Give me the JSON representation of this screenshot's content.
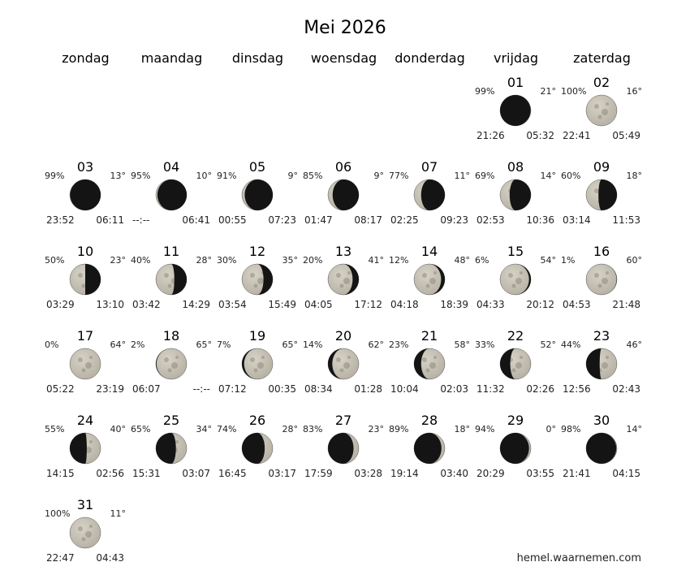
{
  "calendar": {
    "title": "Mei 2026",
    "weekdays": [
      "zondag",
      "maandag",
      "dinsdag",
      "woensdag",
      "donderdag",
      "vrijdag",
      "zaterdag"
    ],
    "first_weekday_index": 5,
    "days": [
      {
        "day": "01",
        "illumination": "99%",
        "altitude": "21°",
        "time_left": "21:26",
        "time_right": "05:32",
        "waxing": true
      },
      {
        "day": "02",
        "illumination": "100%",
        "altitude": "16°",
        "time_left": "22:41",
        "time_right": "05:49",
        "waxing": false
      },
      {
        "day": "03",
        "illumination": "99%",
        "altitude": "13°",
        "time_left": "23:52",
        "time_right": "06:11",
        "waxing": false
      },
      {
        "day": "04",
        "illumination": "95%",
        "altitude": "10°",
        "time_left": "--:--",
        "time_right": "06:41",
        "waxing": false
      },
      {
        "day": "05",
        "illumination": "91%",
        "altitude": "9°",
        "time_left": "00:55",
        "time_right": "07:23",
        "waxing": false
      },
      {
        "day": "06",
        "illumination": "85%",
        "altitude": "9°",
        "time_left": "01:47",
        "time_right": "08:17",
        "waxing": false
      },
      {
        "day": "07",
        "illumination": "77%",
        "altitude": "11°",
        "time_left": "02:25",
        "time_right": "09:23",
        "waxing": false
      },
      {
        "day": "08",
        "illumination": "69%",
        "altitude": "14°",
        "time_left": "02:53",
        "time_right": "10:36",
        "waxing": false
      },
      {
        "day": "09",
        "illumination": "60%",
        "altitude": "18°",
        "time_left": "03:14",
        "time_right": "11:53",
        "waxing": false
      },
      {
        "day": "10",
        "illumination": "50%",
        "altitude": "23°",
        "time_left": "03:29",
        "time_right": "13:10",
        "waxing": false
      },
      {
        "day": "11",
        "illumination": "40%",
        "altitude": "28°",
        "time_left": "03:42",
        "time_right": "14:29",
        "waxing": false
      },
      {
        "day": "12",
        "illumination": "30%",
        "altitude": "35°",
        "time_left": "03:54",
        "time_right": "15:49",
        "waxing": false
      },
      {
        "day": "13",
        "illumination": "20%",
        "altitude": "41°",
        "time_left": "04:05",
        "time_right": "17:12",
        "waxing": false
      },
      {
        "day": "14",
        "illumination": "12%",
        "altitude": "48°",
        "time_left": "04:18",
        "time_right": "18:39",
        "waxing": false
      },
      {
        "day": "15",
        "illumination": "6%",
        "altitude": "54°",
        "time_left": "04:33",
        "time_right": "20:12",
        "waxing": false
      },
      {
        "day": "16",
        "illumination": "1%",
        "altitude": "60°",
        "time_left": "04:53",
        "time_right": "21:48",
        "waxing": false
      },
      {
        "day": "17",
        "illumination": "0%",
        "altitude": "64°",
        "time_left": "05:22",
        "time_right": "23:19",
        "waxing": true
      },
      {
        "day": "18",
        "illumination": "2%",
        "altitude": "65°",
        "time_left": "06:07",
        "time_right": "--:--",
        "waxing": true
      },
      {
        "day": "19",
        "illumination": "7%",
        "altitude": "65°",
        "time_left": "07:12",
        "time_right": "00:35",
        "waxing": true
      },
      {
        "day": "20",
        "illumination": "14%",
        "altitude": "62°",
        "time_left": "08:34",
        "time_right": "01:28",
        "waxing": true
      },
      {
        "day": "21",
        "illumination": "23%",
        "altitude": "58°",
        "time_left": "10:04",
        "time_right": "02:03",
        "waxing": true
      },
      {
        "day": "22",
        "illumination": "33%",
        "altitude": "52°",
        "time_left": "11:32",
        "time_right": "02:26",
        "waxing": true
      },
      {
        "day": "23",
        "illumination": "44%",
        "altitude": "46°",
        "time_left": "12:56",
        "time_right": "02:43",
        "waxing": true
      },
      {
        "day": "24",
        "illumination": "55%",
        "altitude": "40°",
        "time_left": "14:15",
        "time_right": "02:56",
        "waxing": true
      },
      {
        "day": "25",
        "illumination": "65%",
        "altitude": "34°",
        "time_left": "15:31",
        "time_right": "03:07",
        "waxing": true
      },
      {
        "day": "26",
        "illumination": "74%",
        "altitude": "28°",
        "time_left": "16:45",
        "time_right": "03:17",
        "waxing": true
      },
      {
        "day": "27",
        "illumination": "83%",
        "altitude": "23°",
        "time_left": "17:59",
        "time_right": "03:28",
        "waxing": true
      },
      {
        "day": "28",
        "illumination": "89%",
        "altitude": "18°",
        "time_left": "19:14",
        "time_right": "03:40",
        "waxing": true
      },
      {
        "day": "29",
        "illumination": "94%",
        "altitude": "0°",
        "time_left": "20:29",
        "time_right": "03:55",
        "waxing": true
      },
      {
        "day": "30",
        "illumination": "98%",
        "altitude": "14°",
        "time_left": "21:41",
        "time_right": "04:15",
        "waxing": true
      },
      {
        "day": "31",
        "illumination": "100%",
        "altitude": "11°",
        "time_left": "22:47",
        "time_right": "04:43",
        "waxing": true
      }
    ]
  },
  "credit": "hemel.waarnemen.com",
  "colors": {
    "moon_lit": "#b5b0a2",
    "moon_lit_highlight": "#d6d2c6",
    "moon_shadow": "#141414",
    "text": "#000000"
  }
}
